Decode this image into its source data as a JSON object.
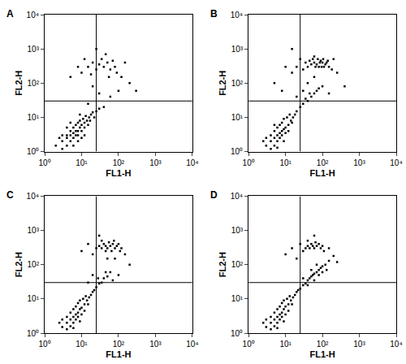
{
  "chart_data": [
    {
      "type": "scatter",
      "title": "A",
      "x_label": "FL1-H",
      "y_label": "FL2-H",
      "log": true,
      "color": "#000000",
      "marker": "square",
      "xlim": [
        1,
        10000
      ],
      "ylim": [
        1,
        10000
      ],
      "xticks": [
        {
          "value": 1,
          "label": "10⁰"
        },
        {
          "value": 10,
          "label": "10¹"
        },
        {
          "value": 100,
          "label": "10²"
        },
        {
          "value": 1000,
          "label": "10³"
        },
        {
          "value": 10000,
          "label": "10⁴"
        }
      ],
      "yticks": [
        {
          "value": 1,
          "label": "10⁰"
        },
        {
          "value": 10,
          "label": "10¹"
        },
        {
          "value": 100,
          "label": "10²"
        },
        {
          "value": 1000,
          "label": "10³"
        },
        {
          "value": 10000,
          "label": "10⁴"
        }
      ],
      "quadrant": {
        "x": 25,
        "y": 30
      },
      "points": [
        [
          2,
          1.5
        ],
        [
          3,
          2
        ],
        [
          4,
          2.5
        ],
        [
          5,
          3
        ],
        [
          6,
          3.5
        ],
        [
          7,
          4
        ],
        [
          8,
          4
        ],
        [
          9,
          5
        ],
        [
          10,
          6
        ],
        [
          12,
          7
        ],
        [
          14,
          8
        ],
        [
          16,
          10
        ],
        [
          18,
          12
        ],
        [
          20,
          14
        ],
        [
          3,
          1.2
        ],
        [
          4,
          1.5
        ],
        [
          5,
          2
        ],
        [
          6,
          2.5
        ],
        [
          7,
          3
        ],
        [
          8,
          3
        ],
        [
          10,
          4
        ],
        [
          12,
          5
        ],
        [
          5,
          4
        ],
        [
          6,
          5
        ],
        [
          7,
          6
        ],
        [
          8,
          7
        ],
        [
          9,
          8
        ],
        [
          4,
          3
        ],
        [
          3,
          3
        ],
        [
          11,
          9
        ],
        [
          13,
          11
        ],
        [
          15,
          6
        ],
        [
          17,
          8
        ],
        [
          22,
          10
        ],
        [
          25,
          15
        ],
        [
          30,
          18
        ],
        [
          6,
          1.5
        ],
        [
          8,
          2
        ],
        [
          10,
          2.5
        ],
        [
          12,
          3
        ],
        [
          2.5,
          2.5
        ],
        [
          4,
          5
        ],
        [
          5,
          7
        ],
        [
          9,
          12
        ],
        [
          15,
          25
        ],
        [
          40,
          20
        ],
        [
          60,
          40
        ],
        [
          100,
          60
        ],
        [
          30,
          50
        ],
        [
          20,
          80
        ],
        [
          15,
          300
        ],
        [
          20,
          400
        ],
        [
          25,
          250
        ],
        [
          30,
          350
        ],
        [
          35,
          500
        ],
        [
          40,
          300
        ],
        [
          50,
          400
        ],
        [
          60,
          250
        ],
        [
          70,
          450
        ],
        [
          80,
          300
        ],
        [
          10,
          200
        ],
        [
          12,
          500
        ],
        [
          45,
          700
        ],
        [
          90,
          200
        ],
        [
          120,
          150
        ],
        [
          150,
          400
        ],
        [
          5,
          150
        ],
        [
          8,
          300
        ],
        [
          200,
          100
        ],
        [
          300,
          60
        ],
        [
          25,
          1000
        ],
        [
          55,
          150
        ],
        [
          18,
          180
        ]
      ]
    },
    {
      "type": "scatter",
      "title": "B",
      "x_label": "FL1-H",
      "y_label": "FL2-H",
      "log": true,
      "color": "#000000",
      "marker": "square",
      "xlim": [
        1,
        10000
      ],
      "ylim": [
        1,
        10000
      ],
      "xticks": [
        {
          "value": 1,
          "label": "10⁰"
        },
        {
          "value": 10,
          "label": "10¹"
        },
        {
          "value": 100,
          "label": "10²"
        },
        {
          "value": 1000,
          "label": "10³"
        },
        {
          "value": 10000,
          "label": "10⁴"
        }
      ],
      "yticks": [
        {
          "value": 1,
          "label": "10⁰"
        },
        {
          "value": 10,
          "label": "10¹"
        },
        {
          "value": 100,
          "label": "10²"
        },
        {
          "value": 1000,
          "label": "10³"
        },
        {
          "value": 10000,
          "label": "10⁴"
        }
      ],
      "quadrant": {
        "x": 25,
        "y": 30
      },
      "points": [
        [
          3,
          1.5
        ],
        [
          4,
          2
        ],
        [
          5,
          2.5
        ],
        [
          6,
          3
        ],
        [
          7,
          3.5
        ],
        [
          8,
          4
        ],
        [
          9,
          4.5
        ],
        [
          10,
          5
        ],
        [
          12,
          6
        ],
        [
          14,
          8
        ],
        [
          16,
          10
        ],
        [
          18,
          12
        ],
        [
          20,
          15
        ],
        [
          4,
          1.2
        ],
        [
          5,
          1.5
        ],
        [
          6,
          2
        ],
        [
          7,
          2.5
        ],
        [
          8,
          3
        ],
        [
          10,
          3.5
        ],
        [
          12,
          4
        ],
        [
          5,
          4
        ],
        [
          6,
          5
        ],
        [
          7,
          6
        ],
        [
          8,
          7
        ],
        [
          9,
          9
        ],
        [
          4,
          3
        ],
        [
          3,
          2.5
        ],
        [
          11,
          10
        ],
        [
          13,
          12
        ],
        [
          15,
          7
        ],
        [
          6,
          1.3
        ],
        [
          9,
          2
        ],
        [
          2.5,
          2
        ],
        [
          5,
          6
        ],
        [
          25,
          20
        ],
        [
          30,
          25
        ],
        [
          40,
          30
        ],
        [
          50,
          40
        ],
        [
          60,
          50
        ],
        [
          70,
          60
        ],
        [
          80,
          70
        ],
        [
          35,
          35
        ],
        [
          45,
          50
        ],
        [
          100,
          80
        ],
        [
          150,
          50
        ],
        [
          20,
          40
        ],
        [
          30,
          60
        ],
        [
          40,
          100
        ],
        [
          60,
          150
        ],
        [
          250,
          200
        ],
        [
          400,
          80
        ],
        [
          8,
          60
        ],
        [
          5,
          100
        ],
        [
          40,
          300
        ],
        [
          50,
          350
        ],
        [
          60,
          400
        ],
        [
          70,
          350
        ],
        [
          80,
          300
        ],
        [
          90,
          450
        ],
        [
          100,
          400
        ],
        [
          110,
          300
        ],
        [
          120,
          350
        ],
        [
          130,
          400
        ],
        [
          150,
          300
        ],
        [
          45,
          450
        ],
        [
          55,
          500
        ],
        [
          65,
          300
        ],
        [
          75,
          500
        ],
        [
          85,
          400
        ],
        [
          95,
          300
        ],
        [
          105,
          500
        ],
        [
          140,
          450
        ],
        [
          35,
          400
        ],
        [
          30,
          250
        ],
        [
          20,
          300
        ],
        [
          25,
          500
        ],
        [
          10,
          300
        ],
        [
          15,
          200
        ],
        [
          180,
          250
        ],
        [
          60,
          600
        ],
        [
          200,
          500
        ],
        [
          15,
          1000
        ]
      ]
    },
    {
      "type": "scatter",
      "title": "C",
      "x_label": "FL1-H",
      "y_label": "FL2-H",
      "log": true,
      "color": "#000000",
      "marker": "square",
      "xlim": [
        1,
        10000
      ],
      "ylim": [
        1,
        10000
      ],
      "xticks": [
        {
          "value": 1,
          "label": "10⁰"
        },
        {
          "value": 10,
          "label": "10¹"
        },
        {
          "value": 100,
          "label": "10²"
        },
        {
          "value": 1000,
          "label": "10³"
        },
        {
          "value": 10000,
          "label": "10⁴"
        }
      ],
      "yticks": [
        {
          "value": 1,
          "label": "10⁰"
        },
        {
          "value": 10,
          "label": "10¹"
        },
        {
          "value": 100,
          "label": "10²"
        },
        {
          "value": 1000,
          "label": "10³"
        },
        {
          "value": 10000,
          "label": "10⁴"
        }
      ],
      "quadrant": {
        "x": 25,
        "y": 30
      },
      "points": [
        [
          3,
          1.5
        ],
        [
          4,
          2
        ],
        [
          5,
          2.5
        ],
        [
          6,
          3
        ],
        [
          7,
          3.5
        ],
        [
          8,
          4
        ],
        [
          9,
          5
        ],
        [
          10,
          5.5
        ],
        [
          12,
          7
        ],
        [
          14,
          9
        ],
        [
          16,
          11
        ],
        [
          18,
          13
        ],
        [
          20,
          16
        ],
        [
          4,
          1.3
        ],
        [
          5,
          1.6
        ],
        [
          6,
          2
        ],
        [
          7,
          2.5
        ],
        [
          8,
          3
        ],
        [
          10,
          3.5
        ],
        [
          12,
          4.5
        ],
        [
          5,
          4
        ],
        [
          6,
          5
        ],
        [
          7,
          6
        ],
        [
          8,
          7.5
        ],
        [
          9,
          9
        ],
        [
          4,
          3
        ],
        [
          3,
          2.5
        ],
        [
          11,
          10
        ],
        [
          13,
          12
        ],
        [
          15,
          7
        ],
        [
          6,
          1.4
        ],
        [
          9,
          2.2
        ],
        [
          2.5,
          2
        ],
        [
          22,
          18
        ],
        [
          25,
          22
        ],
        [
          30,
          28
        ],
        [
          35,
          30
        ],
        [
          40,
          40
        ],
        [
          50,
          45
        ],
        [
          60,
          60
        ],
        [
          28,
          40
        ],
        [
          45,
          60
        ],
        [
          20,
          50
        ],
        [
          15,
          30
        ],
        [
          70,
          35
        ],
        [
          100,
          50
        ],
        [
          25,
          300
        ],
        [
          30,
          350
        ],
        [
          35,
          300
        ],
        [
          40,
          400
        ],
        [
          45,
          350
        ],
        [
          50,
          300
        ],
        [
          55,
          450
        ],
        [
          60,
          350
        ],
        [
          70,
          400
        ],
        [
          80,
          300
        ],
        [
          90,
          350
        ],
        [
          100,
          400
        ],
        [
          110,
          250
        ],
        [
          120,
          300
        ],
        [
          35,
          500
        ],
        [
          45,
          250
        ],
        [
          65,
          250
        ],
        [
          75,
          500
        ],
        [
          20,
          200
        ],
        [
          15,
          400
        ],
        [
          10,
          250
        ],
        [
          50,
          150
        ],
        [
          80,
          150
        ],
        [
          150,
          200
        ],
        [
          30,
          700
        ],
        [
          200,
          100
        ]
      ]
    },
    {
      "type": "scatter",
      "title": "D",
      "x_label": "FL1-H",
      "y_label": "FL2-H",
      "log": true,
      "color": "#000000",
      "marker": "square",
      "xlim": [
        1,
        10000
      ],
      "ylim": [
        1,
        10000
      ],
      "xticks": [
        {
          "value": 1,
          "label": "10⁰"
        },
        {
          "value": 10,
          "label": "10¹"
        },
        {
          "value": 100,
          "label": "10²"
        },
        {
          "value": 1000,
          "label": "10³"
        },
        {
          "value": 10000,
          "label": "10⁴"
        }
      ],
      "yticks": [
        {
          "value": 1,
          "label": "10⁰"
        },
        {
          "value": 10,
          "label": "10¹"
        },
        {
          "value": 100,
          "label": "10²"
        },
        {
          "value": 1000,
          "label": "10³"
        },
        {
          "value": 10000,
          "label": "10⁴"
        }
      ],
      "quadrant": {
        "x": 25,
        "y": 30
      },
      "points": [
        [
          3,
          1.5
        ],
        [
          4,
          2
        ],
        [
          5,
          2.5
        ],
        [
          6,
          3
        ],
        [
          7,
          3.5
        ],
        [
          8,
          4
        ],
        [
          9,
          5
        ],
        [
          10,
          6
        ],
        [
          12,
          7
        ],
        [
          14,
          9
        ],
        [
          16,
          11
        ],
        [
          18,
          13
        ],
        [
          20,
          16
        ],
        [
          4,
          1.3
        ],
        [
          5,
          1.6
        ],
        [
          6,
          2
        ],
        [
          7,
          2.5
        ],
        [
          8,
          3
        ],
        [
          10,
          3.5
        ],
        [
          12,
          4.5
        ],
        [
          5,
          4
        ],
        [
          6,
          5
        ],
        [
          7,
          6
        ],
        [
          8,
          7.5
        ],
        [
          9,
          9
        ],
        [
          4,
          3
        ],
        [
          3,
          2.5
        ],
        [
          11,
          10
        ],
        [
          13,
          12
        ],
        [
          15,
          7
        ],
        [
          6,
          1.4
        ],
        [
          9,
          2.2
        ],
        [
          2.5,
          2
        ],
        [
          22,
          18
        ],
        [
          25,
          20
        ],
        [
          30,
          25
        ],
        [
          35,
          28
        ],
        [
          40,
          35
        ],
        [
          45,
          40
        ],
        [
          50,
          45
        ],
        [
          55,
          50
        ],
        [
          60,
          55
        ],
        [
          70,
          60
        ],
        [
          80,
          70
        ],
        [
          90,
          80
        ],
        [
          100,
          90
        ],
        [
          120,
          100
        ],
        [
          150,
          130
        ],
        [
          200,
          180
        ],
        [
          40,
          25
        ],
        [
          60,
          35
        ],
        [
          80,
          50
        ],
        [
          100,
          60
        ],
        [
          50,
          70
        ],
        [
          70,
          100
        ],
        [
          30,
          40
        ],
        [
          130,
          70
        ],
        [
          250,
          120
        ],
        [
          35,
          300
        ],
        [
          40,
          350
        ],
        [
          45,
          300
        ],
        [
          50,
          400
        ],
        [
          55,
          350
        ],
        [
          60,
          300
        ],
        [
          65,
          450
        ],
        [
          70,
          350
        ],
        [
          80,
          400
        ],
        [
          90,
          300
        ],
        [
          100,
          350
        ],
        [
          30,
          250
        ],
        [
          25,
          400
        ],
        [
          15,
          300
        ],
        [
          10,
          200
        ],
        [
          110,
          250
        ],
        [
          40,
          500
        ],
        [
          150,
          300
        ],
        [
          20,
          150
        ],
        [
          60,
          700
        ]
      ]
    }
  ]
}
